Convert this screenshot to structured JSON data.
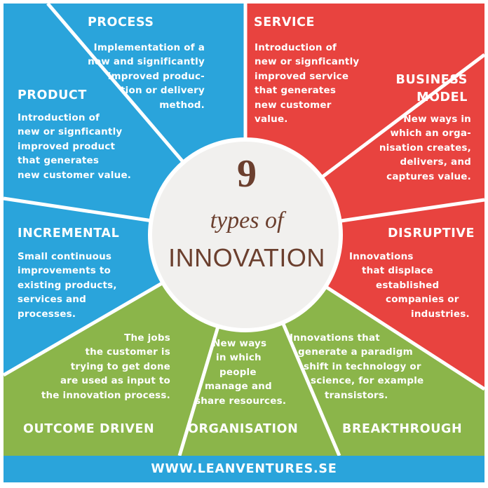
{
  "colors": {
    "blue": "#2aa4db",
    "red": "#e8433f",
    "green": "#8bb54a",
    "center": "#f1f0ee",
    "center_text": "#6b3f2e"
  },
  "center": {
    "number": "9",
    "subtitle": "types of",
    "word": "INNOVATION"
  },
  "segments": [
    {
      "title": "PROCESS",
      "lines": [
        "Implementation of a",
        "new and significantly",
        "improved produc-",
        "tion or delivery",
        "method."
      ]
    },
    {
      "title": "SERVICE",
      "lines": [
        "Introduction of",
        "new or signficantly",
        "improved service",
        "that generates",
        "new customer",
        "value."
      ]
    },
    {
      "title": "BUSINESS MODEL",
      "title_lines": [
        "BUSINESS",
        "MODEL"
      ],
      "lines": [
        "New ways in",
        "which an orga-",
        "nisation creates,",
        "delivers, and",
        "captures value."
      ]
    },
    {
      "title": "DISRUPTIVE",
      "lines": [
        "Innovations",
        "that displace",
        "established",
        "companies or",
        "industries."
      ]
    },
    {
      "title": "BREAKTHROUGH",
      "lines": [
        "Innovations that",
        "generate a paradigm",
        "shift in technology or",
        "science, for example",
        "transistors."
      ]
    },
    {
      "title": "ORGANISATION",
      "lines": [
        "New ways",
        "in which",
        "people",
        "manage and",
        "share resources."
      ]
    },
    {
      "title": "OUTCOME DRIVEN",
      "lines": [
        "The jobs",
        "the customer is",
        "trying to get done",
        "are used as input to",
        "the innovation  process."
      ]
    },
    {
      "title": "INCREMENTAL",
      "lines": [
        "Small continuous",
        "improvements to",
        "existing products,",
        "services and",
        "processes."
      ]
    },
    {
      "title": "PRODUCT",
      "lines": [
        "Introduction of",
        "new or signficantly",
        "improved product",
        "that generates",
        "new customer value."
      ]
    }
  ],
  "footer": "WWW.LEANVENTURES.SE"
}
